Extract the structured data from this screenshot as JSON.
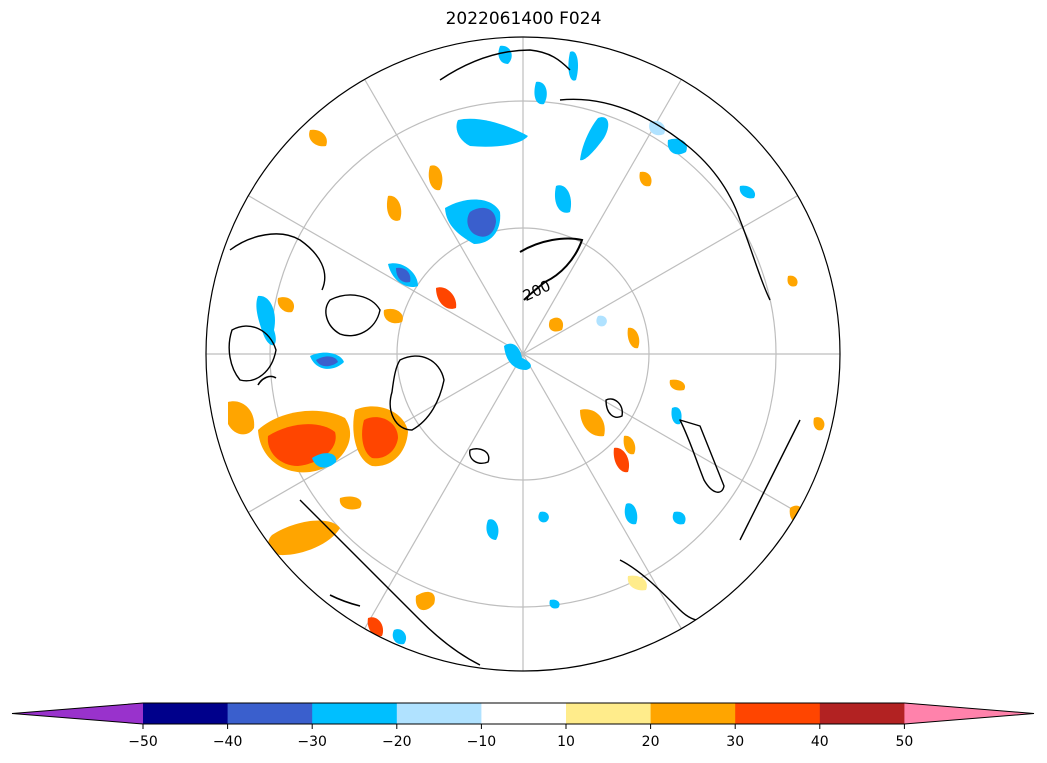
{
  "title": "2022061400 F024",
  "projection": "north-polar-stereographic",
  "contour_label": "200",
  "colorbar": {
    "ticks": [
      "−50",
      "−40",
      "−30",
      "−20",
      "−10",
      "10",
      "20",
      "30",
      "40",
      "50"
    ],
    "colors": [
      "#9932cc",
      "#00008b",
      "#3a5fcd",
      "#00bfff",
      "#b0e2ff",
      "#ffffff",
      "#ffec8b",
      "#ffa500",
      "#ff4500",
      "#b22222",
      "#ff82ab"
    ],
    "extend": "both"
  },
  "map": {
    "land_outline": "#000000",
    "graticule": "#bebebe"
  }
}
